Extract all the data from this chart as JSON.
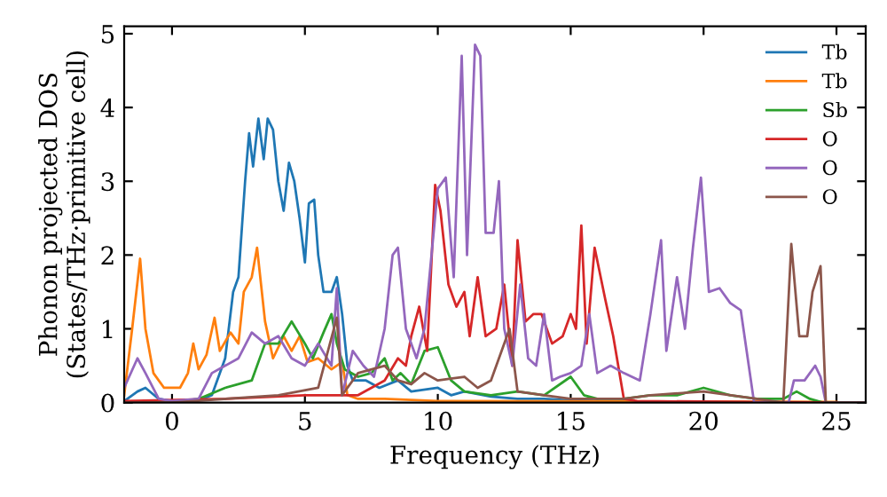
{
  "chart_data": {
    "type": "line",
    "xlabel": "Frequency (THz)",
    "ylabel": "Phonon projected DOS\n(States/THz·primitive cell)",
    "xlim": [
      -1.8,
      26.1
    ],
    "ylim": [
      0,
      5.1
    ],
    "xticks": [
      0,
      5,
      10,
      15,
      20,
      25
    ],
    "yticks": [
      0,
      1,
      2,
      3,
      4,
      5
    ],
    "grid": false,
    "legend": "top right",
    "marker": "none",
    "line_style": "solid",
    "series": [
      {
        "name": "Tb",
        "color": "#1f77b4",
        "x": [
          -1.8,
          -1.3,
          -1.0,
          -0.5,
          0,
          1,
          1.5,
          2.0,
          2.3,
          2.5,
          2.75,
          2.9,
          3.05,
          3.25,
          3.45,
          3.6,
          3.8,
          4.0,
          4.2,
          4.4,
          4.6,
          4.8,
          5.0,
          5.15,
          5.35,
          5.5,
          5.7,
          6.0,
          6.2,
          6.4,
          6.6,
          6.8,
          7.3,
          7.8,
          8.5,
          9,
          10,
          10.5,
          11,
          12,
          13,
          14,
          15,
          16
        ],
        "values": [
          0.02,
          0.15,
          0.2,
          0.05,
          0.02,
          0.03,
          0.1,
          0.6,
          1.5,
          1.7,
          3.0,
          3.65,
          3.2,
          3.85,
          3.3,
          3.85,
          3.7,
          3.0,
          2.6,
          3.25,
          3.0,
          2.5,
          1.9,
          2.7,
          2.75,
          2.0,
          1.5,
          1.5,
          1.7,
          1.2,
          0.5,
          0.3,
          0.3,
          0.2,
          0.3,
          0.15,
          0.2,
          0.1,
          0.15,
          0.08,
          0.05,
          0.05,
          0.03,
          0.02
        ]
      },
      {
        "name": "Tb",
        "color": "#ff7f0e",
        "x": [
          -1.8,
          -1.5,
          -1.2,
          -1.0,
          -0.7,
          -0.3,
          0.3,
          0.6,
          0.8,
          1.0,
          1.3,
          1.6,
          1.8,
          2.2,
          2.5,
          2.7,
          3.0,
          3.2,
          3.5,
          3.8,
          4.2,
          4.5,
          4.8,
          5.1,
          5.5,
          6.0,
          6.4,
          6.6,
          7,
          8,
          10,
          25
        ],
        "values": [
          0.1,
          1.0,
          1.95,
          1.0,
          0.4,
          0.2,
          0.2,
          0.4,
          0.8,
          0.45,
          0.65,
          1.15,
          0.7,
          0.95,
          0.8,
          1.5,
          1.7,
          2.1,
          1.1,
          0.6,
          0.9,
          0.7,
          0.9,
          0.55,
          0.6,
          0.45,
          0.55,
          0.1,
          0.05,
          0.05,
          0.02,
          0.01
        ]
      },
      {
        "name": "Sb",
        "color": "#2ca02c",
        "x": [
          -1.8,
          0,
          1,
          2,
          3,
          3.5,
          4,
          4.5,
          5,
          5.3,
          5.7,
          6.0,
          6.2,
          6.5,
          7,
          7.5,
          8,
          8.3,
          8.6,
          9,
          9.5,
          10,
          10.5,
          11,
          12,
          13,
          14,
          15,
          15.5,
          16,
          17,
          18,
          19,
          20,
          21,
          22,
          23,
          23.5,
          24,
          24.5
        ],
        "values": [
          0.0,
          0.0,
          0.05,
          0.2,
          0.3,
          0.8,
          0.8,
          1.1,
          0.8,
          0.6,
          0.95,
          1.2,
          0.8,
          0.45,
          0.35,
          0.4,
          0.6,
          0.3,
          0.4,
          0.25,
          0.7,
          0.75,
          0.3,
          0.15,
          0.1,
          0.15,
          0.1,
          0.35,
          0.1,
          0.05,
          0.05,
          0.1,
          0.1,
          0.2,
          0.1,
          0.05,
          0.05,
          0.15,
          0.05,
          0.0
        ]
      },
      {
        "name": "O",
        "color": "#d62728",
        "x": [
          -1.8,
          2,
          5,
          7,
          8,
          8.5,
          8.8,
          9,
          9.3,
          9.6,
          9.9,
          10.1,
          10.4,
          10.7,
          11,
          11.2,
          11.5,
          11.8,
          12.2,
          12.5,
          12.8,
          13.0,
          13.3,
          13.6,
          13.9,
          14.3,
          14.7,
          15,
          15.2,
          15.4,
          15.6,
          15.9,
          16.3,
          16.6,
          17,
          17.5,
          25
        ],
        "values": [
          0.02,
          0.05,
          0.1,
          0.1,
          0.3,
          0.6,
          0.5,
          0.9,
          1.3,
          0.7,
          2.95,
          2.6,
          1.6,
          1.3,
          1.5,
          0.9,
          1.7,
          0.9,
          1.0,
          1.6,
          0.5,
          2.2,
          1.1,
          1.2,
          1.2,
          0.8,
          0.9,
          1.2,
          1.0,
          2.4,
          0.8,
          2.1,
          1.4,
          0.9,
          0.05,
          0.02,
          0.0
        ]
      },
      {
        "name": "O",
        "color": "#9467bd",
        "x": [
          -1.8,
          -1.3,
          -1,
          -0.5,
          0,
          1,
          1.5,
          2,
          2.5,
          3,
          3.5,
          4,
          4.5,
          5,
          5.5,
          6.0,
          6.2,
          6.4,
          6.8,
          7.2,
          7.6,
          8,
          8.3,
          8.5,
          8.8,
          9.2,
          9.5,
          10,
          10.3,
          10.6,
          10.9,
          11.1,
          11.4,
          11.6,
          11.8,
          12.1,
          12.3,
          12.5,
          12.8,
          13.1,
          13.4,
          13.7,
          14.0,
          14.3,
          14.6,
          15,
          15.4,
          15.7,
          16,
          16.5,
          17,
          17.6,
          18,
          18.4,
          18.6,
          19,
          19.3,
          19.6,
          19.9,
          20.2,
          20.6,
          21,
          21.4,
          21.7,
          21.9,
          23.2,
          23.4,
          23.8,
          24.2,
          24.4,
          24.6,
          26
        ],
        "values": [
          0.2,
          0.6,
          0.4,
          0.05,
          0.02,
          0.05,
          0.4,
          0.5,
          0.6,
          0.95,
          0.8,
          0.9,
          0.6,
          0.5,
          0.8,
          0.5,
          1.55,
          0.1,
          0.7,
          0.5,
          0.35,
          1.0,
          2.0,
          2.1,
          1.0,
          0.6,
          1.0,
          2.9,
          3.05,
          1.7,
          4.7,
          2.0,
          4.85,
          4.7,
          2.3,
          2.3,
          3.0,
          1.0,
          0.5,
          1.6,
          0.6,
          0.5,
          1.2,
          0.3,
          0.35,
          0.4,
          0.5,
          1.2,
          0.4,
          0.5,
          0.4,
          0.3,
          1.2,
          2.2,
          0.7,
          1.7,
          1.0,
          2.1,
          3.05,
          1.5,
          1.55,
          1.35,
          1.25,
          0.5,
          0.0,
          0.0,
          0.3,
          0.3,
          0.5,
          0.35,
          0.0,
          0.0
        ]
      },
      {
        "name": "O",
        "color": "#8c564b",
        "x": [
          -1.8,
          0,
          4,
          5.5,
          6.2,
          6.4,
          7,
          8,
          8.5,
          9,
          9.5,
          10,
          11,
          11.5,
          12,
          12.7,
          13,
          14,
          15,
          17,
          18,
          20,
          22,
          23,
          23.3,
          23.6,
          23.9,
          24.1,
          24.4,
          24.6,
          26
        ],
        "values": [
          0.0,
          0.0,
          0.1,
          0.2,
          1.15,
          0.1,
          0.4,
          0.5,
          0.3,
          0.25,
          0.4,
          0.3,
          0.35,
          0.2,
          0.3,
          1.0,
          0.15,
          0.1,
          0.05,
          0.05,
          0.1,
          0.15,
          0.05,
          0.0,
          2.15,
          0.9,
          0.9,
          1.5,
          1.85,
          0.0,
          0.0
        ]
      }
    ]
  }
}
